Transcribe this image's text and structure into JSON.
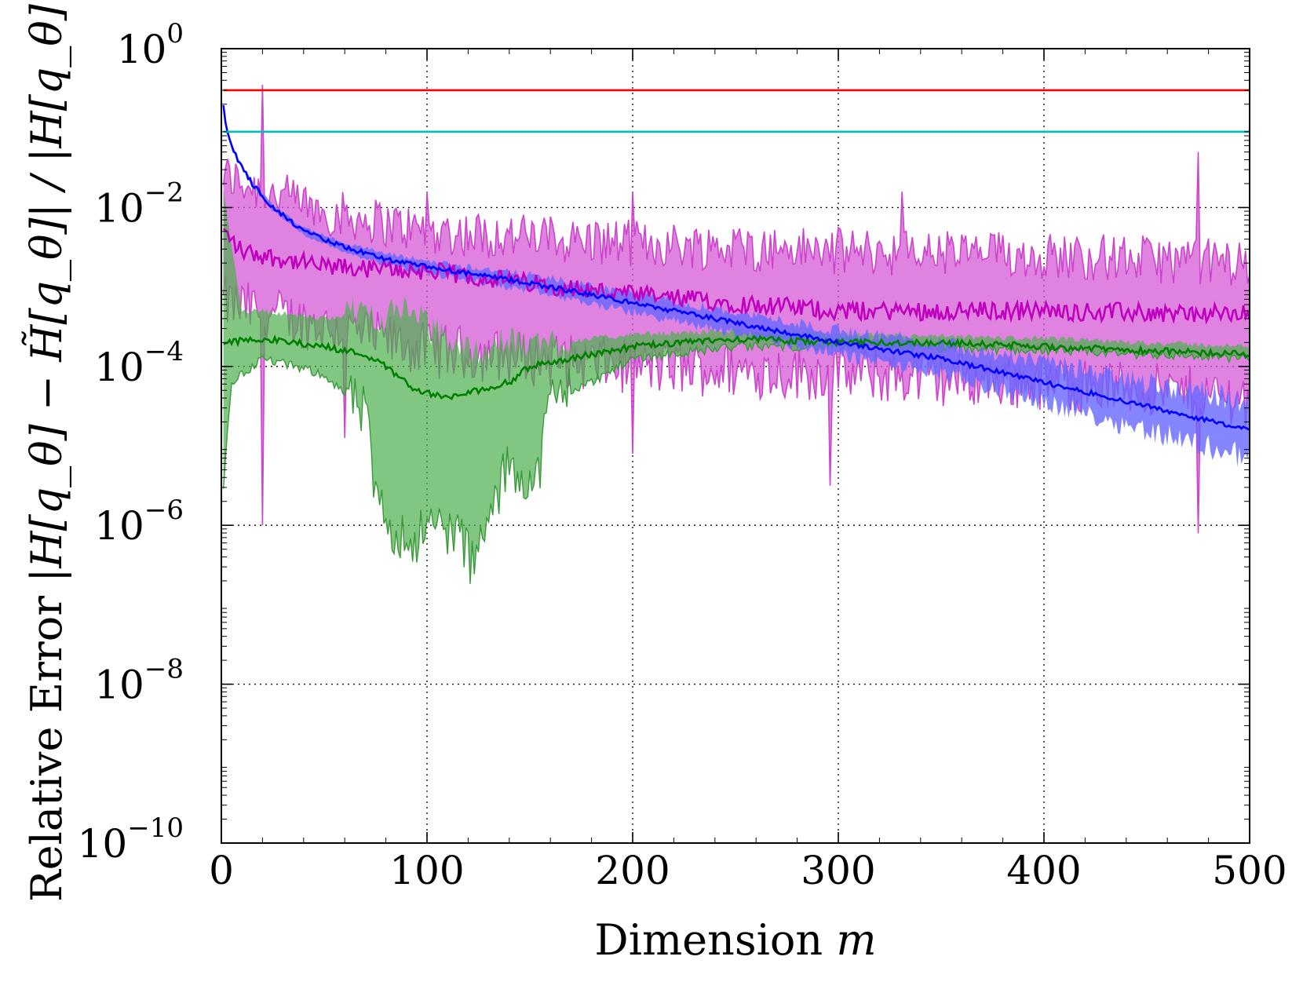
{
  "chart_data": {
    "type": "line",
    "title": "",
    "xlabel": {
      "text": "Dimension",
      "var": "m"
    },
    "ylabel": {
      "prefix": "Relative Error",
      "expr_tex": "|H[q_θ] − H̃[q_θ]| / |H[q_θ]|"
    },
    "yscale": "log",
    "xlim": [
      0,
      500
    ],
    "ylim_exponent": [
      -10,
      0
    ],
    "grid": true,
    "legend": "none",
    "xticks": [
      0,
      100,
      200,
      300,
      400,
      500
    ],
    "xtick_labels": [
      "0",
      "100",
      "200",
      "300",
      "400",
      "500"
    ],
    "yticks_exponent": [
      0,
      -2,
      -4,
      -6,
      -8,
      -10
    ],
    "ytick_base": "10",
    "ytick_exponent_labels": [
      "0",
      "−2",
      "−4",
      "−6",
      "−8",
      "−10"
    ],
    "series": [
      {
        "name": "red-constant",
        "color": "#ff0000",
        "kind": "constant",
        "value": 0.3
      },
      {
        "name": "cyan-constant",
        "color": "#00bfbf",
        "kind": "constant",
        "value": 0.09
      },
      {
        "name": "magenta",
        "color": "#bf00bf",
        "fill_color": "#d65ad6",
        "kind": "noisy",
        "spike": {
          "x": 20,
          "high": 0.35,
          "low": 1e-06
        },
        "median_log10": [
          [
            1,
            -2.3
          ],
          [
            10,
            -2.55
          ],
          [
            50,
            -2.75
          ],
          [
            100,
            -2.8
          ],
          [
            150,
            -2.95
          ],
          [
            200,
            -3.1
          ],
          [
            300,
            -3.3
          ],
          [
            400,
            -3.3
          ],
          [
            500,
            -3.35
          ]
        ],
        "band_lo_log10": [
          [
            1,
            -3.2
          ],
          [
            50,
            -3.5
          ],
          [
            100,
            -3.8
          ],
          [
            200,
            -4.0
          ],
          [
            300,
            -4.1
          ],
          [
            400,
            -4.2
          ],
          [
            500,
            -4.4
          ]
        ],
        "band_hi_log10": [
          [
            1,
            -1.6
          ],
          [
            50,
            -2.05
          ],
          [
            100,
            -2.3
          ],
          [
            200,
            -2.45
          ],
          [
            300,
            -2.55
          ],
          [
            400,
            -2.6
          ],
          [
            500,
            -2.7
          ]
        ],
        "lo_extremes": [
          [
            60,
            -4.9
          ],
          [
            200,
            -5.1
          ],
          [
            296,
            -5.5
          ],
          [
            475,
            -6.1
          ]
        ],
        "hi_extremes": [
          [
            100,
            -1.8
          ],
          [
            200,
            -1.8
          ],
          [
            331,
            -1.8
          ],
          [
            475,
            -1.3
          ]
        ]
      },
      {
        "name": "blue",
        "color": "#0000ff",
        "fill_color": "#6666ff",
        "kind": "smooth",
        "median_log10": [
          [
            1,
            -0.7
          ],
          [
            2,
            -0.95
          ],
          [
            4,
            -1.15
          ],
          [
            8,
            -1.4
          ],
          [
            15,
            -1.7
          ],
          [
            25,
            -2.0
          ],
          [
            40,
            -2.3
          ],
          [
            60,
            -2.5
          ],
          [
            80,
            -2.65
          ],
          [
            100,
            -2.75
          ],
          [
            150,
            -2.95
          ],
          [
            200,
            -3.2
          ],
          [
            250,
            -3.45
          ],
          [
            300,
            -3.7
          ],
          [
            350,
            -3.9
          ],
          [
            400,
            -4.2
          ],
          [
            450,
            -4.5
          ],
          [
            500,
            -4.8
          ]
        ],
        "band_halfwidth_log10": [
          [
            1,
            0.02
          ],
          [
            100,
            0.08
          ],
          [
            200,
            0.12
          ],
          [
            300,
            0.15
          ],
          [
            400,
            0.25
          ],
          [
            500,
            0.35
          ]
        ]
      },
      {
        "name": "green",
        "color": "#007f00",
        "fill_color": "#4caf4c",
        "kind": "smooth",
        "median_log10": [
          [
            1,
            -3.7
          ],
          [
            20,
            -3.65
          ],
          [
            50,
            -3.75
          ],
          [
            70,
            -3.85
          ],
          [
            80,
            -4.0
          ],
          [
            95,
            -4.3
          ],
          [
            110,
            -4.4
          ],
          [
            125,
            -4.3
          ],
          [
            140,
            -4.2
          ],
          [
            150,
            -4.0
          ],
          [
            170,
            -3.9
          ],
          [
            200,
            -3.75
          ],
          [
            250,
            -3.65
          ],
          [
            300,
            -3.7
          ],
          [
            350,
            -3.7
          ],
          [
            400,
            -3.75
          ],
          [
            450,
            -3.8
          ],
          [
            500,
            -3.85
          ]
        ],
        "band_lo_log10": [
          [
            1,
            -5.5
          ],
          [
            5,
            -4.2
          ],
          [
            20,
            -3.9
          ],
          [
            50,
            -4.1
          ],
          [
            70,
            -4.6
          ],
          [
            76,
            -5.8
          ],
          [
            90,
            -6.2
          ],
          [
            105,
            -6.0
          ],
          [
            115,
            -6.1
          ],
          [
            123,
            -6.5
          ],
          [
            140,
            -5.2
          ],
          [
            153,
            -5.5
          ],
          [
            160,
            -4.4
          ],
          [
            180,
            -4.2
          ],
          [
            200,
            -3.9
          ],
          [
            250,
            -3.75
          ],
          [
            300,
            -3.75
          ],
          [
            400,
            -3.8
          ],
          [
            500,
            -3.9
          ]
        ],
        "band_hi_log10": [
          [
            1,
            -1.8
          ],
          [
            10,
            -3.3
          ],
          [
            20,
            -3.3
          ],
          [
            50,
            -3.4
          ],
          [
            70,
            -3.3
          ],
          [
            80,
            -3.4
          ],
          [
            90,
            -3.2
          ],
          [
            100,
            -3.5
          ],
          [
            120,
            -3.8
          ],
          [
            140,
            -3.7
          ],
          [
            160,
            -3.7
          ],
          [
            200,
            -3.6
          ],
          [
            250,
            -3.55
          ],
          [
            300,
            -3.6
          ],
          [
            400,
            -3.65
          ],
          [
            500,
            -3.75
          ]
        ]
      }
    ]
  }
}
